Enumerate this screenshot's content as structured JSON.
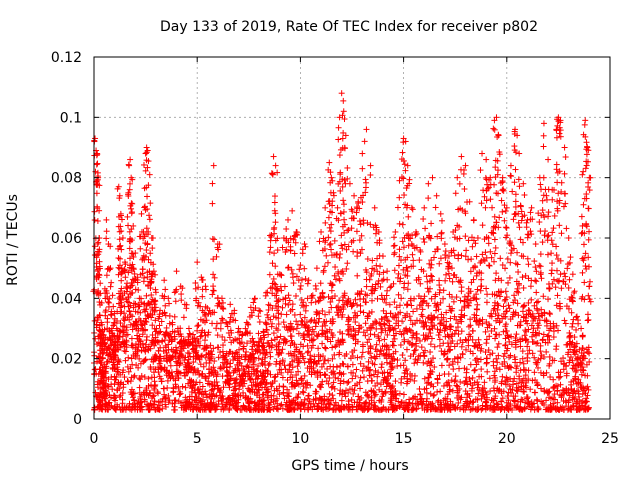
{
  "chart_data": {
    "type": "scatter",
    "title": "Day 133 of 2019, Rate Of TEC Index for receiver p802",
    "xlabel": "GPS time / hours",
    "ylabel": "ROTI / TECUs",
    "xlim": [
      0,
      25
    ],
    "ylim": [
      0,
      0.12
    ],
    "xticks": [
      "0",
      "5",
      "10",
      "15",
      "20",
      "25"
    ],
    "yticks": [
      "0",
      "0.02",
      "0.04",
      "0.06",
      "0.08",
      "0.1",
      "0.12"
    ],
    "grid": true,
    "marker": "+",
    "color": "#ff0000",
    "series": [
      {
        "points": [
          [
            0.05,
            0.093
          ],
          [
            0.1,
            0.089
          ],
          [
            0.15,
            0.088
          ],
          [
            0.2,
            0.08
          ],
          [
            0.25,
            0.06
          ],
          [
            0.3,
            0.045
          ],
          [
            0.35,
            0.032
          ],
          [
            0.4,
            0.028
          ],
          [
            0.45,
            0.022
          ],
          [
            0.5,
            0.018
          ],
          [
            0.6,
            0.066
          ],
          [
            0.7,
            0.058
          ],
          [
            0.8,
            0.05
          ],
          [
            0.9,
            0.041
          ],
          [
            1.0,
            0.035
          ],
          [
            1.1,
            0.03
          ],
          [
            1.2,
            0.077
          ],
          [
            1.25,
            0.074
          ],
          [
            1.3,
            0.068
          ],
          [
            1.4,
            0.06
          ],
          [
            1.5,
            0.052
          ],
          [
            1.6,
            0.045
          ],
          [
            1.7,
            0.084
          ],
          [
            1.75,
            0.086
          ],
          [
            1.8,
            0.08
          ],
          [
            1.9,
            0.064
          ],
          [
            2.0,
            0.055
          ],
          [
            2.1,
            0.047
          ],
          [
            2.2,
            0.04
          ],
          [
            2.3,
            0.068
          ],
          [
            2.4,
            0.062
          ],
          [
            2.5,
            0.088
          ],
          [
            2.55,
            0.09
          ],
          [
            2.6,
            0.089
          ],
          [
            2.7,
            0.081
          ],
          [
            2.8,
            0.06
          ],
          [
            2.9,
            0.049
          ],
          [
            3.0,
            0.042
          ],
          [
            3.2,
            0.036
          ],
          [
            3.4,
            0.046
          ],
          [
            3.6,
            0.04
          ],
          [
            3.8,
            0.032
          ],
          [
            4.0,
            0.049
          ],
          [
            4.2,
            0.044
          ],
          [
            4.4,
            0.038
          ],
          [
            4.6,
            0.03
          ],
          [
            4.8,
            0.028
          ],
          [
            5.0,
            0.052
          ],
          [
            5.2,
            0.047
          ],
          [
            5.4,
            0.044
          ],
          [
            5.6,
            0.036
          ],
          [
            5.8,
            0.084
          ],
          [
            6.0,
            0.058
          ],
          [
            6.2,
            0.04
          ],
          [
            6.4,
            0.032
          ],
          [
            6.6,
            0.038
          ],
          [
            6.8,
            0.036
          ],
          [
            7.0,
            0.03
          ],
          [
            7.2,
            0.028
          ],
          [
            7.4,
            0.032
          ],
          [
            7.6,
            0.037
          ],
          [
            7.8,
            0.04
          ],
          [
            8.0,
            0.036
          ],
          [
            8.2,
            0.029
          ],
          [
            8.4,
            0.042
          ],
          [
            8.6,
            0.061
          ],
          [
            8.7,
            0.087
          ],
          [
            8.8,
            0.084
          ],
          [
            8.9,
            0.056
          ],
          [
            9.0,
            0.048
          ],
          [
            9.2,
            0.06
          ],
          [
            9.4,
            0.066
          ],
          [
            9.6,
            0.069
          ],
          [
            9.8,
            0.062
          ],
          [
            10.0,
            0.051
          ],
          [
            10.2,
            0.058
          ],
          [
            10.4,
            0.046
          ],
          [
            10.6,
            0.041
          ],
          [
            10.8,
            0.05
          ],
          [
            11.0,
            0.062
          ],
          [
            11.2,
            0.07
          ],
          [
            11.4,
            0.085
          ],
          [
            11.5,
            0.08
          ],
          [
            11.6,
            0.075
          ],
          [
            11.8,
            0.07
          ],
          [
            11.9,
            0.1
          ],
          [
            12.0,
            0.108
          ],
          [
            12.1,
            0.102
          ],
          [
            12.2,
            0.094
          ],
          [
            12.4,
            0.078
          ],
          [
            12.6,
            0.074
          ],
          [
            12.8,
            0.072
          ],
          [
            13.0,
            0.088
          ],
          [
            13.2,
            0.096
          ],
          [
            13.4,
            0.084
          ],
          [
            13.6,
            0.07
          ],
          [
            13.8,
            0.062
          ],
          [
            14.0,
            0.054
          ],
          [
            14.2,
            0.049
          ],
          [
            14.4,
            0.044
          ],
          [
            14.6,
            0.062
          ],
          [
            14.8,
            0.079
          ],
          [
            15.0,
            0.093
          ],
          [
            15.1,
            0.092
          ],
          [
            15.2,
            0.084
          ],
          [
            15.4,
            0.07
          ],
          [
            15.6,
            0.062
          ],
          [
            15.8,
            0.056
          ],
          [
            16.0,
            0.07
          ],
          [
            16.2,
            0.078
          ],
          [
            16.4,
            0.08
          ],
          [
            16.6,
            0.074
          ],
          [
            16.8,
            0.068
          ],
          [
            17.0,
            0.058
          ],
          [
            17.2,
            0.054
          ],
          [
            17.4,
            0.062
          ],
          [
            17.6,
            0.08
          ],
          [
            17.8,
            0.087
          ],
          [
            18.0,
            0.084
          ],
          [
            18.2,
            0.072
          ],
          [
            18.4,
            0.066
          ],
          [
            18.6,
            0.06
          ],
          [
            18.8,
            0.088
          ],
          [
            19.0,
            0.086
          ],
          [
            19.2,
            0.08
          ],
          [
            19.4,
            0.099
          ],
          [
            19.5,
            0.1
          ],
          [
            19.6,
            0.094
          ],
          [
            19.8,
            0.08
          ],
          [
            20.0,
            0.07
          ],
          [
            20.2,
            0.084
          ],
          [
            20.4,
            0.096
          ],
          [
            20.5,
            0.094
          ],
          [
            20.6,
            0.088
          ],
          [
            20.8,
            0.078
          ],
          [
            21.0,
            0.066
          ],
          [
            21.2,
            0.07
          ],
          [
            21.4,
            0.058
          ],
          [
            21.6,
            0.08
          ],
          [
            21.8,
            0.098
          ],
          [
            22.0,
            0.086
          ],
          [
            22.2,
            0.076
          ],
          [
            22.4,
            0.096
          ],
          [
            22.5,
            0.1
          ],
          [
            22.6,
            0.099
          ],
          [
            22.8,
            0.09
          ],
          [
            23.0,
            0.06
          ],
          [
            23.2,
            0.048
          ],
          [
            23.4,
            0.034
          ],
          [
            23.6,
            0.03
          ],
          [
            23.7,
            0.082
          ],
          [
            23.8,
            0.099
          ],
          [
            23.9,
            0.09
          ],
          [
            24.0,
            0.08
          ]
        ]
      }
    ],
    "dense_band": {
      "segments": [
        [
          0.0,
          0.032
        ],
        [
          1.0,
          0.03
        ],
        [
          2.0,
          0.033
        ],
        [
          3.0,
          0.03
        ],
        [
          4.0,
          0.028
        ],
        [
          5.0,
          0.026
        ],
        [
          6.0,
          0.024
        ],
        [
          7.0,
          0.022
        ],
        [
          8.0,
          0.026
        ],
        [
          9.0,
          0.032
        ],
        [
          10.0,
          0.034
        ],
        [
          11.0,
          0.036
        ],
        [
          12.0,
          0.04
        ],
        [
          13.0,
          0.042
        ],
        [
          14.0,
          0.034
        ],
        [
          15.0,
          0.04
        ],
        [
          16.0,
          0.042
        ],
        [
          17.0,
          0.036
        ],
        [
          18.0,
          0.04
        ],
        [
          19.0,
          0.042
        ],
        [
          20.0,
          0.04
        ],
        [
          21.0,
          0.038
        ],
        [
          22.0,
          0.036
        ],
        [
          23.0,
          0.028
        ],
        [
          24.0,
          0.024
        ]
      ],
      "floor": 0.003
    }
  }
}
